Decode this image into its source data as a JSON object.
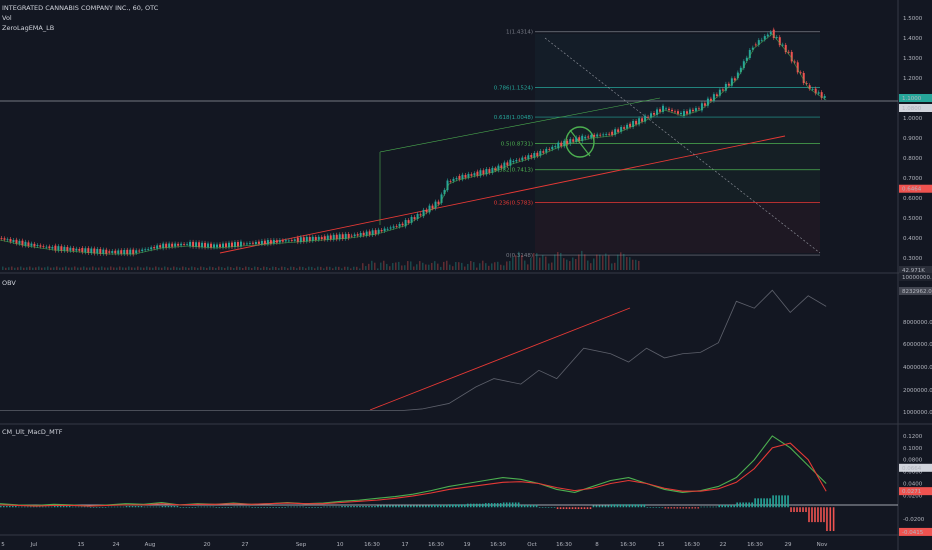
{
  "header": {
    "symbol_line": "INTEGRATED CANNABIS COMPANY INC., 60, OTC",
    "vol_label": "Vol",
    "indicator_label": "ZeroLagEMA_LB"
  },
  "panes": {
    "obv_label": "OBV",
    "macd_label": "CM_Ult_MacD_MTF"
  },
  "colors": {
    "background": "#131722",
    "up": "#26a69a",
    "down": "#ef5350",
    "trend_green": "#4caf50",
    "trend_red": "#e53935",
    "grid": "#1e222d"
  },
  "price_axis": {
    "ticks": [
      "1.5000",
      "1.4000",
      "1.3000",
      "1.2000",
      "1.1000",
      "1.0000",
      "0.9000",
      "0.8000",
      "0.7000",
      "0.6000",
      "0.5000",
      "0.4000",
      "0.3000"
    ],
    "badges": {
      "last_green": "1.1000",
      "last_gray": "1.0800",
      "red": "0.6464",
      "vol": "42.971K"
    }
  },
  "obv_axis": {
    "ticks": [
      "8000000.0000",
      "6000000.0000",
      "4000000.0000",
      "2000000.0000",
      "1000000.0000"
    ],
    "badge": "8232962.0930",
    "top_badge": "10000000.0000"
  },
  "macd_axis": {
    "ticks": [
      "0.1200",
      "0.1000",
      "0.0800",
      "0.0600",
      "0.0400",
      "0.0200",
      "-0.0200",
      "-0.0400"
    ],
    "badges": {
      "light": "0.0664",
      "red": "0.0271",
      "neg": "-0.0415"
    }
  },
  "time_axis": {
    "labels": [
      "5",
      "Jul",
      "15",
      "24",
      "Aug",
      "20",
      "27",
      "Sep",
      "10",
      "16:30",
      "17",
      "16:30",
      "19",
      "16:30",
      "Oct",
      "16:30",
      "8",
      "16:30",
      "15",
      "16:30",
      "22",
      "16:30",
      "29",
      "Nov"
    ]
  },
  "fib_levels": [
    {
      "label": "1(1.4314)",
      "value": 1.4314
    },
    {
      "label": "0.786(1.1524)",
      "value": 1.1524
    },
    {
      "label": "0.618(1.0048)",
      "value": 1.0048
    },
    {
      "label": "0.5(0.8731)",
      "value": 0.8731
    },
    {
      "label": "0.382(0.7413)",
      "value": 0.7413
    },
    {
      "label": "0.236(0.5783)",
      "value": 0.5783
    },
    {
      "label": "0(0.3148)",
      "value": 0.3148
    }
  ],
  "chart_data": {
    "type": "line",
    "price": {
      "ylim": [
        0.25,
        1.55
      ],
      "x": [
        0,
        0.03,
        0.06,
        0.09,
        0.12,
        0.15,
        0.18,
        0.21,
        0.24,
        0.27,
        0.3,
        0.33,
        0.36,
        0.39,
        0.42,
        0.45,
        0.47,
        0.49,
        0.5,
        0.51,
        0.53,
        0.55,
        0.57,
        0.6,
        0.62,
        0.64,
        0.65,
        0.66,
        0.68,
        0.7,
        0.72,
        0.74,
        0.76,
        0.78,
        0.8,
        0.82,
        0.84,
        0.86,
        0.88,
        0.9,
        0.92
      ],
      "values": [
        0.4,
        0.37,
        0.35,
        0.34,
        0.33,
        0.33,
        0.36,
        0.37,
        0.36,
        0.37,
        0.38,
        0.39,
        0.4,
        0.41,
        0.43,
        0.47,
        0.52,
        0.58,
        0.68,
        0.7,
        0.72,
        0.74,
        0.78,
        0.82,
        0.86,
        0.89,
        0.9,
        0.91,
        0.92,
        0.96,
        1.0,
        1.05,
        1.02,
        1.05,
        1.12,
        1.2,
        1.36,
        1.43,
        1.32,
        1.16,
        1.1
      ]
    },
    "obv": {
      "ylim": [
        0,
        10000000
      ],
      "x": [
        0,
        0.1,
        0.2,
        0.3,
        0.4,
        0.45,
        0.47,
        0.5,
        0.53,
        0.55,
        0.58,
        0.6,
        0.62,
        0.65,
        0.68,
        0.7,
        0.72,
        0.74,
        0.76,
        0.78,
        0.8,
        0.82,
        0.84,
        0.86,
        0.88,
        0.9,
        0.92
      ],
      "values": [
        700000,
        700000,
        700000,
        700000,
        700000,
        700000,
        800000,
        1200000,
        2400000,
        3000000,
        2600000,
        3600000,
        3000000,
        5200000,
        4800000,
        4200000,
        5200000,
        4500000,
        4800000,
        4900000,
        5600000,
        8600000,
        8100000,
        9400000,
        7800000,
        9000000,
        8232962
      ]
    },
    "macd": {
      "ylim": [
        -0.045,
        0.13
      ],
      "x": [
        0,
        0.02,
        0.04,
        0.06,
        0.08,
        0.1,
        0.12,
        0.14,
        0.16,
        0.18,
        0.2,
        0.22,
        0.24,
        0.26,
        0.28,
        0.3,
        0.32,
        0.34,
        0.36,
        0.38,
        0.4,
        0.42,
        0.44,
        0.46,
        0.48,
        0.5,
        0.52,
        0.54,
        0.56,
        0.58,
        0.6,
        0.62,
        0.64,
        0.66,
        0.68,
        0.7,
        0.72,
        0.74,
        0.76,
        0.78,
        0.8,
        0.82,
        0.84,
        0.86,
        0.88,
        0.9,
        0.92
      ],
      "series": [
        {
          "values": [
            0.006,
            0.004,
            0.003,
            0.005,
            0.004,
            0.002,
            0.004,
            0.006,
            0.005,
            0.008,
            0.004,
            0.006,
            0.005,
            0.007,
            0.005,
            0.006,
            0.008,
            0.006,
            0.007,
            0.01,
            0.012,
            0.015,
            0.018,
            0.022,
            0.028,
            0.035,
            0.04,
            0.045,
            0.05,
            0.047,
            0.04,
            0.03,
            0.025,
            0.035,
            0.045,
            0.05,
            0.04,
            0.03,
            0.025,
            0.028,
            0.035,
            0.05,
            0.08,
            0.12,
            0.1,
            0.07,
            0.04
          ]
        },
        {
          "values": [
            0.004,
            0.003,
            0.002,
            0.003,
            0.003,
            0.002,
            0.003,
            0.004,
            0.004,
            0.006,
            0.004,
            0.005,
            0.005,
            0.006,
            0.005,
            0.006,
            0.007,
            0.006,
            0.006,
            0.008,
            0.01,
            0.012,
            0.015,
            0.019,
            0.024,
            0.03,
            0.034,
            0.038,
            0.042,
            0.043,
            0.04,
            0.033,
            0.028,
            0.032,
            0.04,
            0.045,
            0.04,
            0.032,
            0.027,
            0.027,
            0.031,
            0.042,
            0.065,
            0.1,
            0.108,
            0.08,
            0.027
          ]
        }
      ],
      "hist": [
        0.002,
        0.001,
        0.001,
        0.002,
        0.001,
        0.0,
        0.001,
        0.002,
        0.001,
        0.002,
        0.0,
        0.001,
        0.0,
        0.001,
        0.0,
        0.0,
        0.001,
        0.0,
        0.001,
        0.002,
        0.002,
        0.003,
        0.003,
        0.003,
        0.004,
        0.005,
        0.006,
        0.007,
        0.008,
        0.004,
        0.0,
        -0.003,
        -0.003,
        0.003,
        0.005,
        0.005,
        0.0,
        -0.002,
        -0.002,
        0.001,
        0.004,
        0.008,
        0.015,
        0.02,
        -0.008,
        -0.025,
        -0.04
      ]
    }
  }
}
